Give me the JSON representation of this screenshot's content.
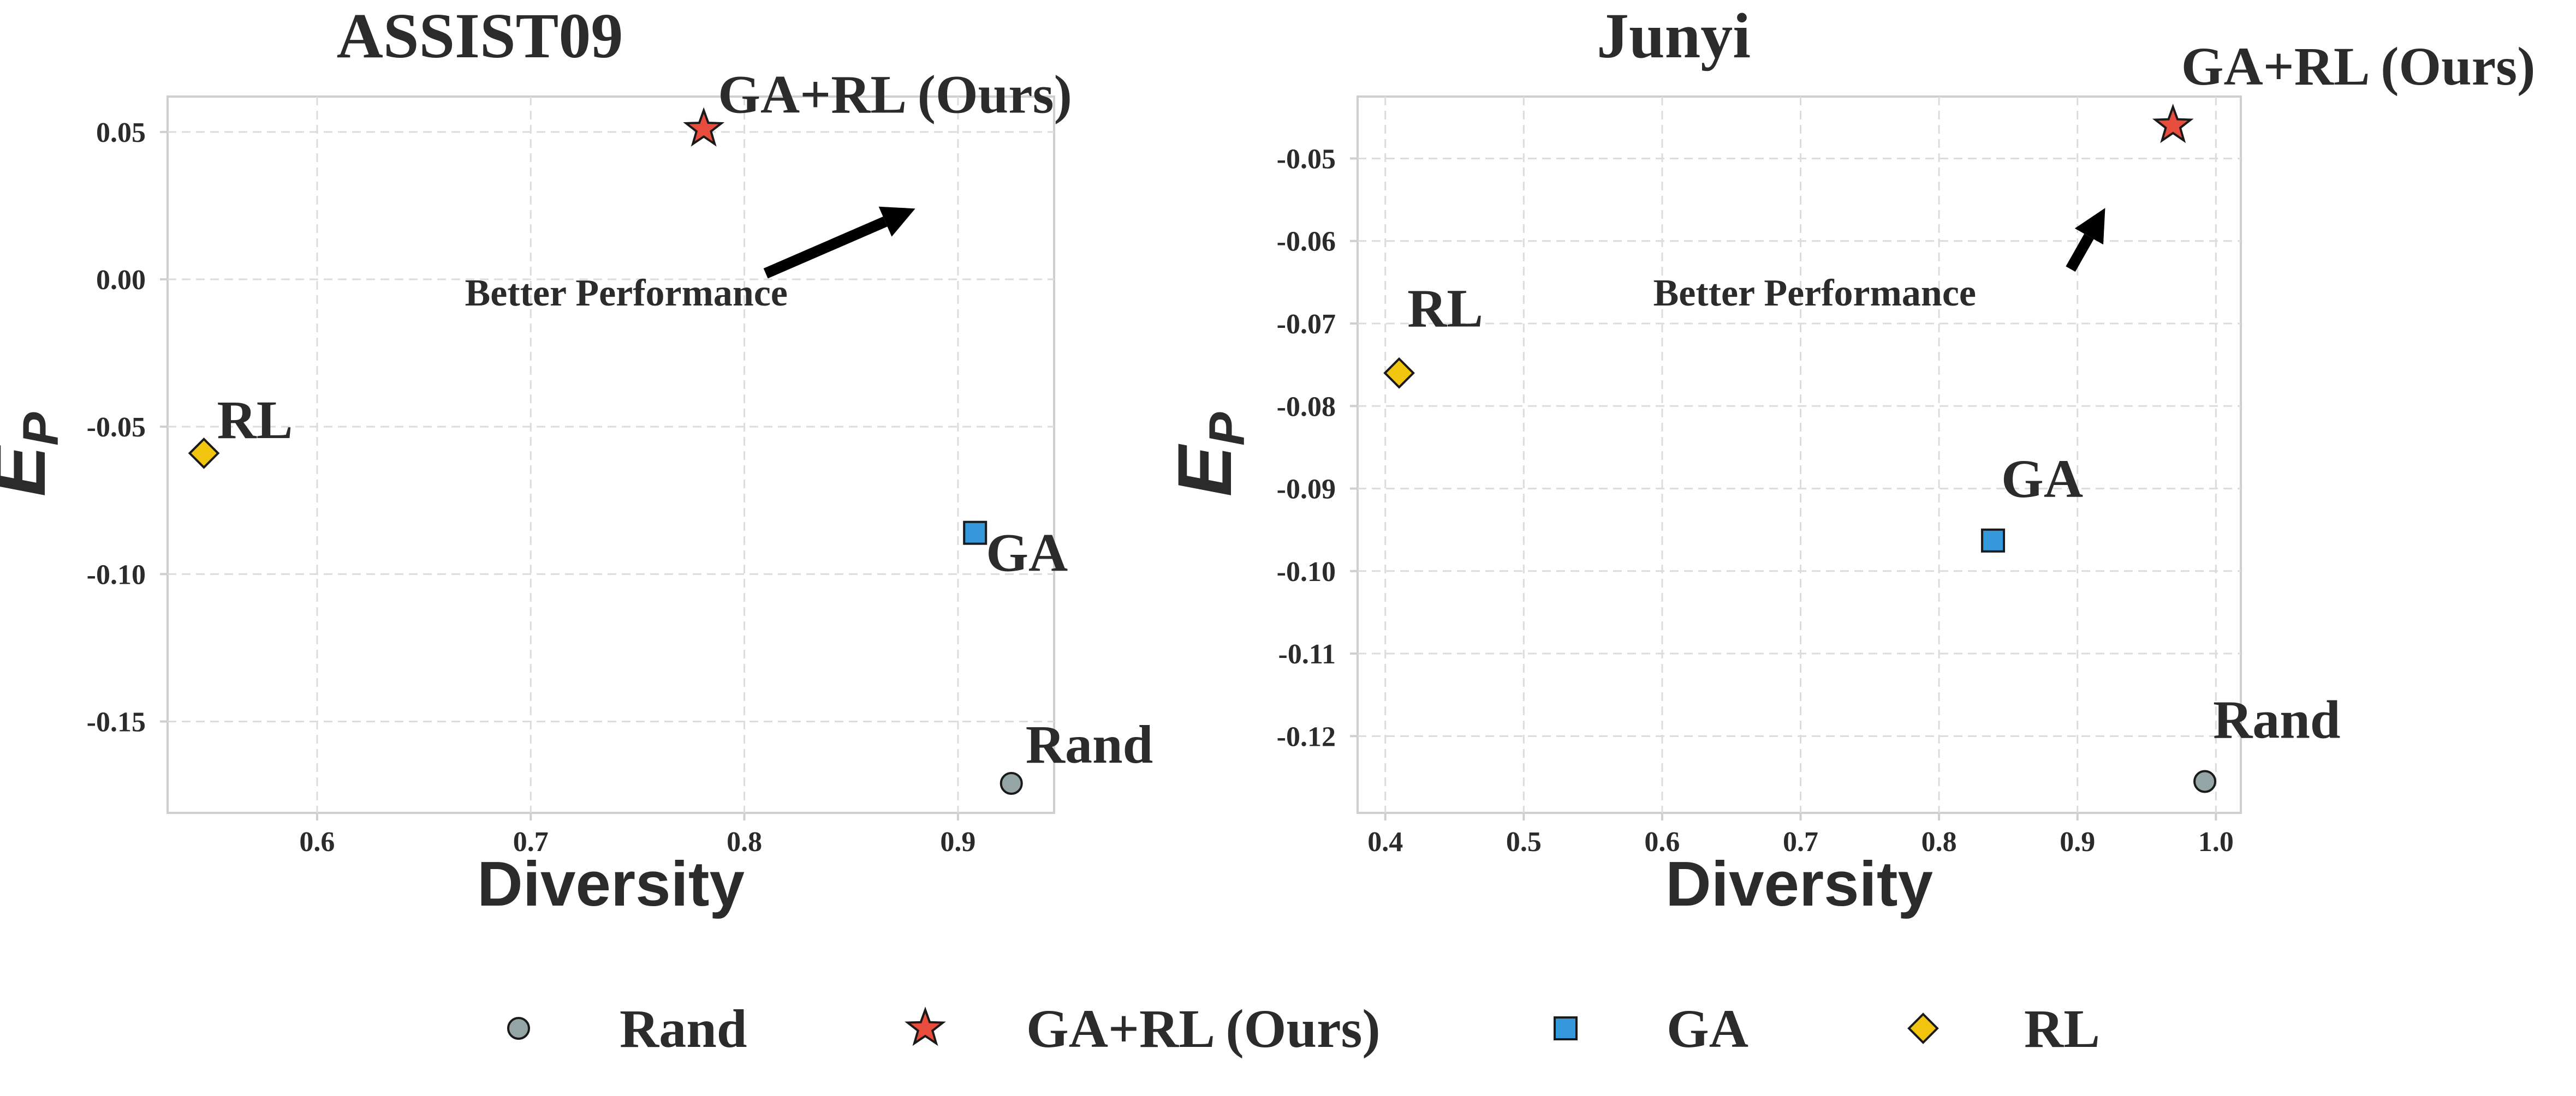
{
  "chart_data": [
    {
      "type": "scatter",
      "title": "ASSIST09",
      "xlabel": "Diversity",
      "ylabel": "E",
      "ylabel_sub": "P",
      "xlim": [
        0.53,
        0.945
      ],
      "ylim": [
        -0.181,
        0.062
      ],
      "xticks": [
        0.6,
        0.7,
        0.8,
        0.9
      ],
      "xtick_labels": [
        "0.6",
        "0.7",
        "0.8",
        "0.9"
      ],
      "yticks": [
        0.05,
        0.0,
        -0.05,
        -0.1,
        -0.15
      ],
      "ytick_labels": [
        "0.05",
        "0.00",
        "-0.05",
        "-0.10",
        "-0.15"
      ],
      "grid": true,
      "points": [
        {
          "name": "Rand",
          "label": "Rand",
          "x": 0.925,
          "y": -0.171
        },
        {
          "name": "GA+RL (Ours)",
          "label": "GA+RL (Ours)",
          "x": 0.781,
          "y": 0.051
        },
        {
          "name": "GA",
          "label": "GA",
          "x": 0.908,
          "y": -0.086
        },
        {
          "name": "RL",
          "label": "RL",
          "x": 0.547,
          "y": -0.059
        }
      ],
      "annotation": {
        "text": "Better Performance",
        "arrow_from": [
          0.81,
          0.002
        ],
        "arrow_to": [
          0.88,
          0.024
        ]
      }
    },
    {
      "type": "scatter",
      "title": "Junyi",
      "xlabel": "Diversity",
      "ylabel": "E",
      "ylabel_sub": "P",
      "xlim": [
        0.38,
        1.018
      ],
      "ylim": [
        -0.1293,
        -0.0425
      ],
      "xticks": [
        0.4,
        0.5,
        0.6,
        0.7,
        0.8,
        0.9,
        1.0
      ],
      "xtick_labels": [
        "0.4",
        "0.5",
        "0.6",
        "0.7",
        "0.8",
        "0.9",
        "1.0"
      ],
      "yticks": [
        -0.05,
        -0.06,
        -0.07,
        -0.08,
        -0.09,
        -0.1,
        -0.11,
        -0.12
      ],
      "ytick_labels": [
        "-0.05",
        "-0.06",
        "-0.07",
        "-0.08",
        "-0.09",
        "-0.10",
        "-0.11",
        "-0.12"
      ],
      "grid": true,
      "points": [
        {
          "name": "Rand",
          "label": "Rand",
          "x": 0.992,
          "y": -0.1255
        },
        {
          "name": "GA+RL (Ours)",
          "label": "GA+RL (Ours)",
          "x": 0.969,
          "y": -0.046
        },
        {
          "name": "GA",
          "label": "GA",
          "x": 0.839,
          "y": -0.0963
        },
        {
          "name": "RL",
          "label": "RL",
          "x": 0.41,
          "y": -0.076
        }
      ],
      "annotation": {
        "text": "Better Performance",
        "arrow_from": [
          0.895,
          -0.0634
        ],
        "arrow_to": [
          0.92,
          -0.056
        ]
      }
    }
  ],
  "legend": {
    "placement": "bottom-center",
    "entries": [
      {
        "name": "Rand",
        "label": "Rand"
      },
      {
        "name": "GA+RL (Ours)",
        "label": "GA+RL (Ours)"
      },
      {
        "name": "GA",
        "label": "GA"
      },
      {
        "name": "RL",
        "label": "RL"
      }
    ]
  },
  "series_styles": {
    "Rand": {
      "marker": "circle",
      "color": "#95a5a6"
    },
    "GA+RL (Ours)": {
      "marker": "star",
      "color": "#e74c3c"
    },
    "GA": {
      "marker": "square",
      "color": "#3498db"
    },
    "RL": {
      "marker": "diamond",
      "color": "#f1c40f"
    }
  }
}
